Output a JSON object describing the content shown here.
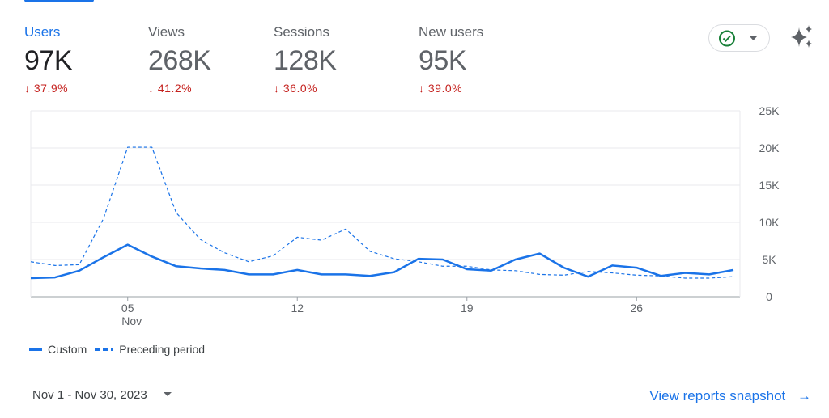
{
  "metrics": [
    {
      "label": "Users",
      "value": "97K",
      "change": "37.9%",
      "active": true
    },
    {
      "label": "Views",
      "value": "268K",
      "change": "41.2%"
    },
    {
      "label": "Sessions",
      "value": "128K",
      "change": "36.0%"
    },
    {
      "label": "New users",
      "value": "95K",
      "change": "39.0%"
    }
  ],
  "colors": {
    "accent": "#1a73e8",
    "negative": "#c5221f",
    "check": "#188038"
  },
  "chart_data": {
    "type": "line",
    "x": [
      1,
      2,
      3,
      4,
      5,
      6,
      7,
      8,
      9,
      10,
      11,
      12,
      13,
      14,
      15,
      16,
      17,
      18,
      19,
      20,
      21,
      22,
      23,
      24,
      25,
      26,
      27,
      28,
      29,
      30
    ],
    "x_tick_labels": [
      {
        "day": 5,
        "label": "05",
        "sub": "Nov"
      },
      {
        "day": 12,
        "label": "12"
      },
      {
        "day": 19,
        "label": "19"
      },
      {
        "day": 26,
        "label": "26"
      }
    ],
    "y_tick_labels": [
      "0",
      "5K",
      "10K",
      "15K",
      "20K",
      "25K"
    ],
    "ylim": [
      0,
      25000
    ],
    "series": [
      {
        "name": "Custom",
        "style": "solid",
        "values": [
          2500,
          2600,
          3500,
          5300,
          7000,
          5400,
          4100,
          3800,
          3600,
          3000,
          3000,
          3600,
          3000,
          3000,
          2800,
          3300,
          5100,
          5000,
          3700,
          3500,
          5000,
          5800,
          3900,
          2700,
          4200,
          3900,
          2800,
          3200,
          3000,
          3600
        ]
      },
      {
        "name": "Preceding period",
        "style": "dashed",
        "values": [
          4700,
          4200,
          4300,
          10500,
          20100,
          20100,
          11300,
          7700,
          5900,
          4700,
          5500,
          8000,
          7600,
          9100,
          6100,
          5100,
          4700,
          4100,
          4100,
          3600,
          3500,
          3000,
          2900,
          3400,
          3200,
          2900,
          2800,
          2500,
          2500,
          2700
        ]
      }
    ],
    "grid": true,
    "legend": "bottom-left"
  },
  "footer": {
    "date_range": "Nov 1 - Nov 30, 2023",
    "snapshot_link": "View reports snapshot"
  }
}
